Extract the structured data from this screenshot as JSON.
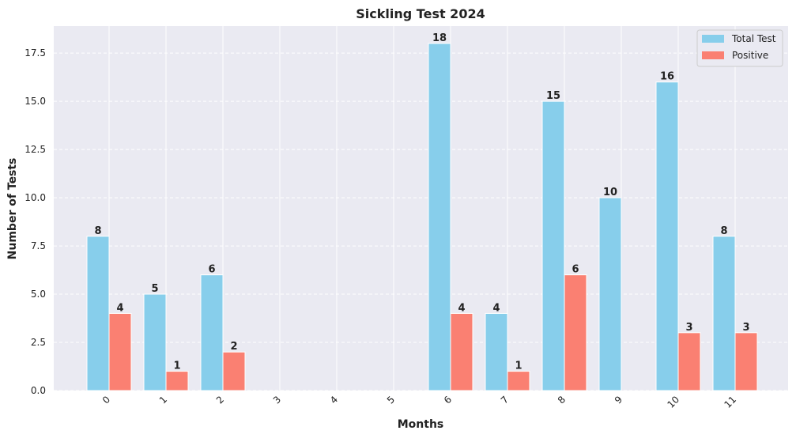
{
  "chart_data": {
    "type": "bar",
    "title": "Sickling Test 2024",
    "xlabel": "Months",
    "ylabel": "Number of Tests",
    "categories": [
      "0",
      "1",
      "2",
      "3",
      "4",
      "5",
      "6",
      "7",
      "8",
      "9",
      "10",
      "11"
    ],
    "series": [
      {
        "name": "Total Test",
        "color": "#87ceeb",
        "values": [
          8,
          5,
          6,
          0,
          0,
          0,
          18,
          4,
          15,
          10,
          16,
          8
        ]
      },
      {
        "name": "Positive",
        "color": "#fa8072",
        "values": [
          4,
          1,
          2,
          0,
          0,
          0,
          4,
          1,
          6,
          0,
          3,
          3
        ]
      }
    ],
    "ylim": [
      0,
      18.9
    ],
    "yticks": [
      "0.0",
      "2.5",
      "5.0",
      "7.5",
      "10.0",
      "12.5",
      "15.0",
      "17.5"
    ],
    "grid": true,
    "legend": "top-right",
    "background": "#eaeaf2"
  }
}
